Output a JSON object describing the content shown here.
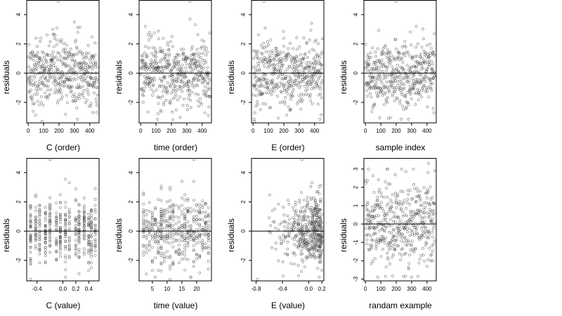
{
  "colors": {
    "points": "#444444",
    "frame": "#000000",
    "zero_line": "#000000",
    "background": "#ffffff"
  },
  "chart_data": [
    {
      "type": "scatter",
      "ylabel": "residuals",
      "xlabel": "C (order)",
      "xlim": [
        -10,
        460
      ],
      "ylim": [
        -3.4,
        5.0
      ],
      "xticks": [
        0,
        100,
        200,
        300,
        400
      ],
      "xtick_labels": [
        "0",
        "100",
        "200",
        "300",
        "400"
      ],
      "yticks": [
        -2,
        0,
        2,
        4
      ],
      "ytick_labels": [
        "-2",
        "0",
        "2",
        "4"
      ],
      "hline": 0,
      "n_points": 450,
      "x_kind": "index",
      "x_domain": [
        1,
        450
      ],
      "points_outliers": [
        {
          "x": 195,
          "y": 4.9
        },
        {
          "x": 300,
          "y": 3.5
        },
        {
          "x": 90,
          "y": -3.3
        },
        {
          "x": 420,
          "y": -2.7
        }
      ]
    },
    {
      "type": "scatter",
      "ylabel": "residuals",
      "xlabel": "time (order)",
      "xlim": [
        -10,
        460
      ],
      "ylim": [
        -3.4,
        5.0
      ],
      "xticks": [
        0,
        100,
        200,
        300,
        400
      ],
      "xtick_labels": [
        "0",
        "100",
        "200",
        "300",
        "400"
      ],
      "yticks": [
        -2,
        0,
        2,
        4
      ],
      "ytick_labels": [
        "-2",
        "0",
        "2",
        "4"
      ],
      "hline": 0,
      "n_points": 450,
      "x_kind": "index",
      "x_domain": [
        1,
        450
      ],
      "points_outliers": [
        {
          "x": 320,
          "y": 4.9
        },
        {
          "x": 30,
          "y": 3.2
        },
        {
          "x": 210,
          "y": -3.2
        },
        {
          "x": 440,
          "y": -2.9
        }
      ]
    },
    {
      "type": "scatter",
      "ylabel": "residuals",
      "xlabel": "E (order)",
      "xlim": [
        -10,
        460
      ],
      "ylim": [
        -3.4,
        5.0
      ],
      "xticks": [
        0,
        100,
        200,
        300,
        400
      ],
      "xtick_labels": [
        "0",
        "100",
        "200",
        "300",
        "400"
      ],
      "yticks": [
        -2,
        0,
        2,
        4
      ],
      "ytick_labels": [
        "-2",
        "0",
        "2",
        "4"
      ],
      "hline": 0,
      "n_points": 450,
      "x_kind": "index",
      "x_domain": [
        1,
        450
      ],
      "points_outliers": [
        {
          "x": 70,
          "y": 4.9
        },
        {
          "x": 10,
          "y": -3.3
        },
        {
          "x": 380,
          "y": 3.4
        },
        {
          "x": 240,
          "y": -2.5
        }
      ]
    },
    {
      "type": "scatter",
      "ylabel": "residuals",
      "xlabel": "sample index",
      "xlim": [
        -10,
        460
      ],
      "ylim": [
        -3.4,
        5.0
      ],
      "xticks": [
        0,
        100,
        200,
        300,
        400
      ],
      "xtick_labels": [
        "0",
        "100",
        "200",
        "300",
        "400"
      ],
      "yticks": [
        -2,
        0,
        2,
        4
      ],
      "ytick_labels": [
        "-2",
        "0",
        "2",
        "4"
      ],
      "hline": 0,
      "n_points": 450,
      "x_kind": "index",
      "x_domain": [
        1,
        450
      ],
      "points_outliers": [
        {
          "x": 200,
          "y": 4.9
        },
        {
          "x": 150,
          "y": -3.1
        },
        {
          "x": 330,
          "y": 3.2
        },
        {
          "x": 440,
          "y": -2.4
        }
      ]
    },
    {
      "type": "scatter",
      "ylabel": "residuals",
      "xlabel": "C (value)",
      "xlim": [
        -0.56,
        0.56
      ],
      "ylim": [
        -3.4,
        5.0
      ],
      "xticks": [
        -0.4,
        0.0,
        0.2,
        0.4
      ],
      "xtick_labels": [
        "-0.4",
        "0.0",
        "0.2",
        "0.4"
      ],
      "yticks": [
        -2,
        0,
        2,
        4
      ],
      "ytick_labels": [
        "-2",
        "0",
        "2",
        "4"
      ],
      "hline": 0,
      "n_points": 450,
      "x_kind": "columns",
      "x_columns": [
        -0.5,
        -0.42,
        -0.36,
        -0.27,
        -0.2,
        -0.1,
        -0.04,
        0.04,
        0.1,
        0.2,
        0.25,
        0.33,
        0.4,
        0.44,
        0.5
      ],
      "points_outliers": [
        {
          "x": -0.2,
          "y": 4.9
        },
        {
          "x": -0.5,
          "y": -3.3
        },
        {
          "x": 0.4,
          "y": -2.7
        },
        {
          "x": 0.5,
          "y": 2.9
        }
      ]
    },
    {
      "type": "scatter",
      "ylabel": "residuals",
      "xlabel": "time (value)",
      "xlim": [
        0.5,
        25
      ],
      "ylim": [
        -3.4,
        5.0
      ],
      "xticks": [
        5,
        10,
        15,
        20
      ],
      "xtick_labels": [
        "5",
        "10",
        "15",
        "20"
      ],
      "yticks": [
        -2,
        0,
        2,
        4
      ],
      "ytick_labels": [
        "-2",
        "0",
        "2",
        "4"
      ],
      "hline": 0,
      "n_points": 450,
      "x_kind": "columns",
      "x_columns": [
        2,
        3,
        4,
        5,
        6,
        7,
        8,
        9,
        10,
        11,
        12,
        13,
        14,
        15,
        16,
        17,
        18,
        19,
        20,
        21,
        22,
        23,
        24
      ],
      "points_outliers": [
        {
          "x": 19,
          "y": 4.9
        },
        {
          "x": 11,
          "y": -3.3
        },
        {
          "x": 2,
          "y": 2.6
        },
        {
          "x": 24,
          "y": -2.6
        }
      ]
    },
    {
      "type": "scatter",
      "ylabel": "residuals",
      "xlabel": "E (value)",
      "xlim": [
        -0.87,
        0.23
      ],
      "ylim": [
        -3.4,
        5.0
      ],
      "xticks": [
        -0.8,
        -0.4,
        0.0,
        0.2
      ],
      "xtick_labels": [
        "-0.8",
        "-0.4",
        "0.0",
        "0.2"
      ],
      "yticks": [
        -2,
        0,
        2,
        4
      ],
      "ytick_labels": [
        "-2",
        "0",
        "2",
        "4"
      ],
      "hline": 0,
      "n_points": 450,
      "x_kind": "skewed",
      "x_domain": [
        -0.82,
        0.2
      ],
      "points_outliers": [
        {
          "x": -0.78,
          "y": -3.3
        },
        {
          "x": -0.1,
          "y": 4.9
        },
        {
          "x": 0.05,
          "y": 3.3
        },
        {
          "x": -0.55,
          "y": 1.4
        }
      ]
    },
    {
      "type": "scatter",
      "ylabel": "residuals",
      "xlabel": "randam example",
      "xlim": [
        -10,
        460
      ],
      "ylim": [
        -3.1,
        3.6
      ],
      "xticks": [
        0,
        100,
        200,
        300,
        400
      ],
      "xtick_labels": [
        "0",
        "100",
        "200",
        "300",
        "400"
      ],
      "yticks": [
        -3,
        -2,
        -1,
        0,
        1,
        2,
        3
      ],
      "ytick_labels": [
        "-3",
        "-2",
        "-1",
        "0",
        "1",
        "2",
        "3"
      ],
      "hline": 0,
      "n_points": 450,
      "x_kind": "index",
      "x_domain": [
        1,
        450
      ],
      "points_outliers": [
        {
          "x": 410,
          "y": 3.3
        },
        {
          "x": 80,
          "y": -2.9
        },
        {
          "x": 300,
          "y": -2.9
        },
        {
          "x": 450,
          "y": 2.9
        }
      ]
    }
  ]
}
